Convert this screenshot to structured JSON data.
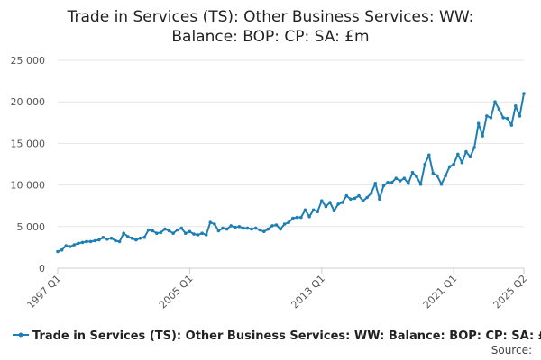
{
  "chart_data": {
    "type": "line",
    "title_lines": [
      "Trade in Services (TS): Other Business Services: WW:",
      "Balance: BOP: CP: SA: £m"
    ],
    "xlabel": "",
    "ylabel": "",
    "ylim": [
      0,
      25000
    ],
    "y_ticks": [
      0,
      5000,
      10000,
      15000,
      20000,
      25000
    ],
    "y_tick_labels": [
      "0",
      "5 000",
      "10 000",
      "15 000",
      "20 000",
      "25 000"
    ],
    "x_tick_labels": [
      {
        "index": 0,
        "label": "1997 Q1"
      },
      {
        "index": 32,
        "label": "2005 Q1"
      },
      {
        "index": 64,
        "label": "2013 Q1"
      },
      {
        "index": 96,
        "label": "2021 Q1"
      },
      {
        "index": 113,
        "label": "2025 Q2"
      }
    ],
    "grid": "horizontal",
    "legend_position": "bottom",
    "source_label": "Source:",
    "series": [
      {
        "name": "Trade in Services (TS): Other Business Services: WW: Balance: BOP: CP: SA: £m",
        "color": "#1f7fb4",
        "x": [
          "1997 Q1",
          "1997 Q2",
          "1997 Q3",
          "1997 Q4",
          "1998 Q1",
          "1998 Q2",
          "1998 Q3",
          "1998 Q4",
          "1999 Q1",
          "1999 Q2",
          "1999 Q3",
          "1999 Q4",
          "2000 Q1",
          "2000 Q2",
          "2000 Q3",
          "2000 Q4",
          "2001 Q1",
          "2001 Q2",
          "2001 Q3",
          "2001 Q4",
          "2002 Q1",
          "2002 Q2",
          "2002 Q3",
          "2002 Q4",
          "2003 Q1",
          "2003 Q2",
          "2003 Q3",
          "2003 Q4",
          "2004 Q1",
          "2004 Q2",
          "2004 Q3",
          "2004 Q4",
          "2005 Q1",
          "2005 Q2",
          "2005 Q3",
          "2005 Q4",
          "2006 Q1",
          "2006 Q2",
          "2006 Q3",
          "2006 Q4",
          "2007 Q1",
          "2007 Q2",
          "2007 Q3",
          "2007 Q4",
          "2008 Q1",
          "2008 Q2",
          "2008 Q3",
          "2008 Q4",
          "2009 Q1",
          "2009 Q2",
          "2009 Q3",
          "2009 Q4",
          "2010 Q1",
          "2010 Q2",
          "2010 Q3",
          "2010 Q4",
          "2011 Q1",
          "2011 Q2",
          "2011 Q3",
          "2011 Q4",
          "2012 Q1",
          "2012 Q2",
          "2012 Q3",
          "2012 Q4",
          "2013 Q1",
          "2013 Q2",
          "2013 Q3",
          "2013 Q4",
          "2014 Q1",
          "2014 Q2",
          "2014 Q3",
          "2014 Q4",
          "2015 Q1",
          "2015 Q2",
          "2015 Q3",
          "2015 Q4",
          "2016 Q1",
          "2016 Q2",
          "2016 Q3",
          "2016 Q4",
          "2017 Q1",
          "2017 Q2",
          "2017 Q3",
          "2017 Q4",
          "2018 Q1",
          "2018 Q2",
          "2018 Q3",
          "2018 Q4",
          "2019 Q1",
          "2019 Q2",
          "2019 Q3",
          "2019 Q4",
          "2020 Q1",
          "2020 Q2",
          "2020 Q3",
          "2020 Q4",
          "2021 Q1",
          "2021 Q2",
          "2021 Q3",
          "2021 Q4",
          "2022 Q1",
          "2022 Q2",
          "2022 Q3",
          "2022 Q4",
          "2023 Q1",
          "2023 Q2",
          "2023 Q3",
          "2023 Q4",
          "2024 Q1",
          "2024 Q2",
          "2024 Q3",
          "2024 Q4",
          "2025 Q1",
          "2025 Q2"
        ],
        "values": [
          2000,
          2200,
          2700,
          2600,
          2800,
          3000,
          3100,
          3200,
          3200,
          3300,
          3400,
          3700,
          3500,
          3600,
          3300,
          3200,
          4200,
          3800,
          3600,
          3400,
          3600,
          3700,
          4600,
          4500,
          4200,
          4300,
          4700,
          4500,
          4200,
          4600,
          4800,
          4200,
          4400,
          4100,
          4000,
          4200,
          4000,
          5500,
          5300,
          4500,
          4800,
          4700,
          5100,
          4900,
          5000,
          4800,
          4800,
          4700,
          4800,
          4600,
          4400,
          4700,
          5100,
          5200,
          4700,
          5300,
          5500,
          6000,
          6100,
          6100,
          7000,
          6200,
          7000,
          6800,
          8100,
          7400,
          7900,
          6900,
          7700,
          7900,
          8700,
          8300,
          8400,
          8700,
          8100,
          8500,
          9000,
          10200,
          8300,
          9900,
          10300,
          10300,
          10800,
          10500,
          10800,
          10200,
          11500,
          11000,
          10100,
          12500,
          13600,
          11400,
          11100,
          10100,
          11100,
          12200,
          12500,
          13700,
          12700,
          14000,
          13400,
          14500,
          17400,
          15900,
          18300,
          18100,
          20000,
          19100,
          18100,
          18000,
          17200,
          19500,
          18300,
          21000
        ]
      }
    ]
  }
}
